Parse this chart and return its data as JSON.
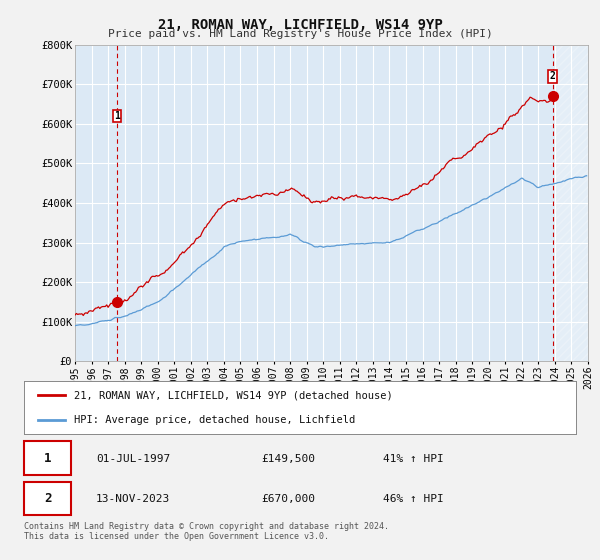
{
  "title": "21, ROMAN WAY, LICHFIELD, WS14 9YP",
  "subtitle": "Price paid vs. HM Land Registry's House Price Index (HPI)",
  "ylim": [
    0,
    800000
  ],
  "yticks": [
    0,
    100000,
    200000,
    300000,
    400000,
    500000,
    600000,
    700000,
    800000
  ],
  "ytick_labels": [
    "£0",
    "£100K",
    "£200K",
    "£300K",
    "£400K",
    "£500K",
    "£600K",
    "£700K",
    "£800K"
  ],
  "house_color": "#cc0000",
  "hpi_color": "#5b9bd5",
  "plot_bg": "#dce9f5",
  "grid_color": "#ffffff",
  "outer_bg": "#f2f2f2",
  "point1_year": 1997.54,
  "point1_value": 149500,
  "point2_year": 2023.87,
  "point2_value": 670000,
  "legend_house": "21, ROMAN WAY, LICHFIELD, WS14 9YP (detached house)",
  "legend_hpi": "HPI: Average price, detached house, Lichfield",
  "table_row1": [
    "1",
    "01-JUL-1997",
    "£149,500",
    "41% ↑ HPI"
  ],
  "table_row2": [
    "2",
    "13-NOV-2023",
    "£670,000",
    "46% ↑ HPI"
  ],
  "footnote": "Contains HM Land Registry data © Crown copyright and database right 2024.\nThis data is licensed under the Open Government Licence v3.0.",
  "xmin": 1995,
  "xmax": 2026,
  "hatch_start": 2024.0
}
